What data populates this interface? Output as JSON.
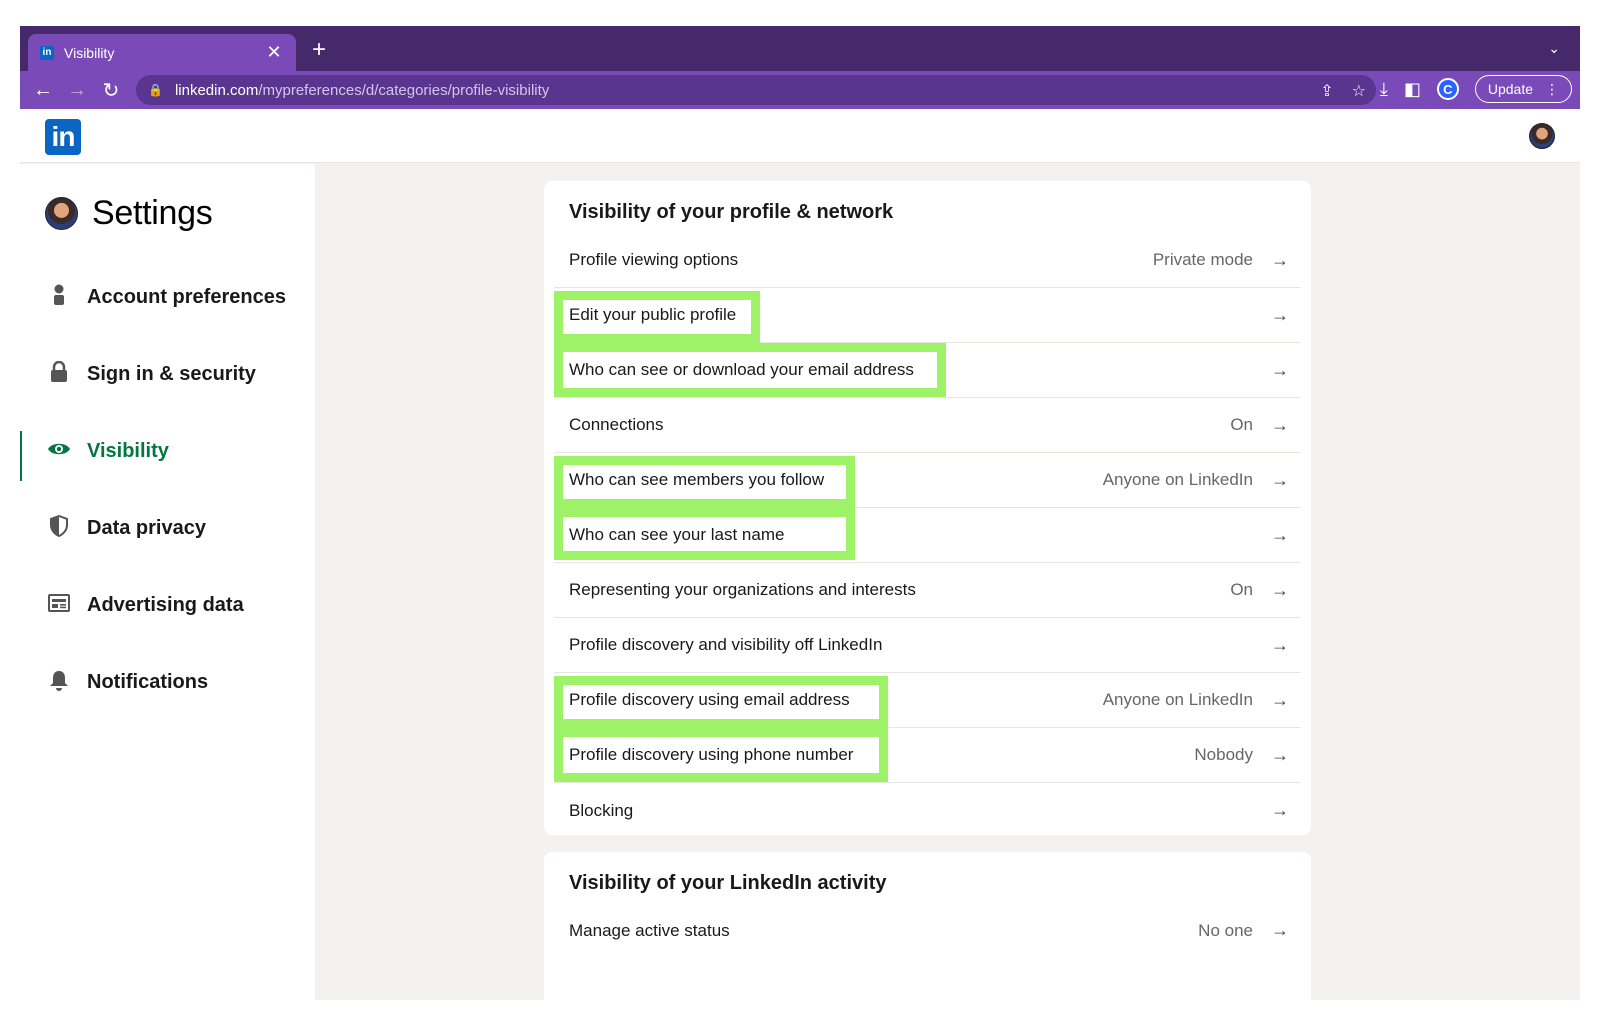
{
  "browser": {
    "tab_title": "Visibility",
    "favicon_text": "in",
    "tab_close": "✕",
    "new_tab": "+",
    "tab_menu": "⌄",
    "url_host": "linkedin.com",
    "url_path": "/mypreferences/d/categories/profile-visibility",
    "update_label": "Update",
    "ext_label": "C"
  },
  "header": {
    "logo_text": "in"
  },
  "sidebar": {
    "title": "Settings",
    "items": [
      {
        "label": "Account preferences",
        "icon": "person-icon",
        "active": false
      },
      {
        "label": "Sign in & security",
        "icon": "lock-icon",
        "active": false
      },
      {
        "label": "Visibility",
        "icon": "eye-icon",
        "active": true
      },
      {
        "label": "Data privacy",
        "icon": "shield-icon",
        "active": false
      },
      {
        "label": "Advertising data",
        "icon": "ad-icon",
        "active": false
      },
      {
        "label": "Notifications",
        "icon": "bell-icon",
        "active": false
      }
    ]
  },
  "profile_network": {
    "title": "Visibility of your profile & network",
    "rows": [
      {
        "label": "Profile viewing options",
        "value": "Private mode"
      },
      {
        "label": "Edit your public profile",
        "value": "",
        "highlighted": true
      },
      {
        "label": "Who can see or download your email address",
        "value": "",
        "highlighted": true
      },
      {
        "label": "Connections",
        "value": "On"
      },
      {
        "label": "Who can see members you follow",
        "value": "Anyone on LinkedIn",
        "highlighted": true
      },
      {
        "label": "Who can see your last name",
        "value": "",
        "highlighted": true
      },
      {
        "label": "Representing your organizations and interests",
        "value": "On"
      },
      {
        "label": "Profile discovery and visibility off LinkedIn",
        "value": ""
      },
      {
        "label": "Profile discovery using email address",
        "value": "Anyone on LinkedIn",
        "highlighted": true
      },
      {
        "label": "Profile discovery using phone number",
        "value": "Nobody",
        "highlighted": true
      },
      {
        "label": "Blocking",
        "value": ""
      }
    ]
  },
  "activity": {
    "title": "Visibility of your LinkedIn activity",
    "rows": [
      {
        "label": "Manage active status",
        "value": "No one"
      }
    ]
  },
  "colors": {
    "highlight": "#9ef267",
    "accent": "#057642",
    "brand": "#0a66c2",
    "chrome": "#7a4bb8"
  }
}
